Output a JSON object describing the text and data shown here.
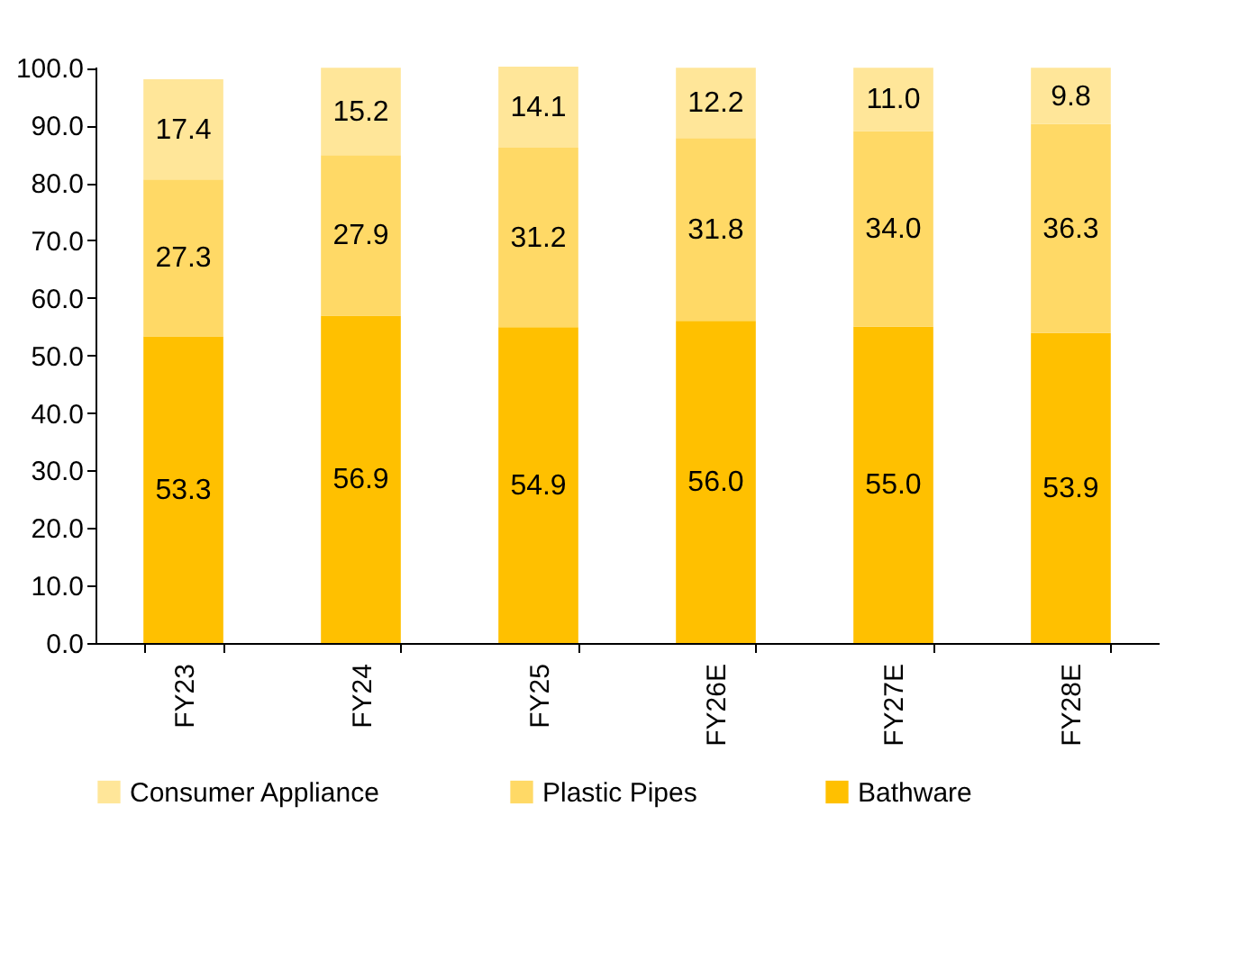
{
  "chart_data": {
    "type": "bar",
    "stacked": true,
    "categories": [
      "FY23",
      "FY24",
      "FY25",
      "FY26E",
      "FY27E",
      "FY28E"
    ],
    "series": [
      {
        "name": "Bathware",
        "color": "#ffc000",
        "values": [
          53.3,
          56.9,
          54.9,
          56.0,
          55.0,
          53.9
        ],
        "value_labels": [
          "53.3",
          "56.9",
          "54.9",
          "56.0",
          "55.0",
          "53.9"
        ]
      },
      {
        "name": "Plastic Pipes",
        "color": "#ffd966",
        "values": [
          27.3,
          27.9,
          31.2,
          31.8,
          34.0,
          36.3
        ],
        "value_labels": [
          "27.3",
          "27.9",
          "31.2",
          "31.8",
          "34.0",
          "36.3"
        ]
      },
      {
        "name": "Consumer Appliance",
        "color": "#ffe699",
        "values": [
          17.4,
          15.2,
          14.1,
          12.2,
          11.0,
          9.8
        ],
        "value_labels": [
          "17.4",
          "15.2",
          "14.1",
          "12.2",
          "11.0",
          "9.8"
        ]
      }
    ],
    "ylim": [
      0,
      100.2
    ],
    "yticks": [
      {
        "value": 0,
        "label": "0.0"
      },
      {
        "value": 10,
        "label": "10.0"
      },
      {
        "value": 20,
        "label": "20.0"
      },
      {
        "value": 30,
        "label": "30.0"
      },
      {
        "value": 40,
        "label": "40.0"
      },
      {
        "value": 50,
        "label": "50.0"
      },
      {
        "value": 60,
        "label": "60.0"
      },
      {
        "value": 70,
        "label": "70.0"
      },
      {
        "value": 80,
        "label": "80.0"
      },
      {
        "value": 90,
        "label": "90.0"
      },
      {
        "value": 100,
        "label": "100.0"
      }
    ],
    "grid": false,
    "legend": "bottom",
    "data_labels": true
  }
}
